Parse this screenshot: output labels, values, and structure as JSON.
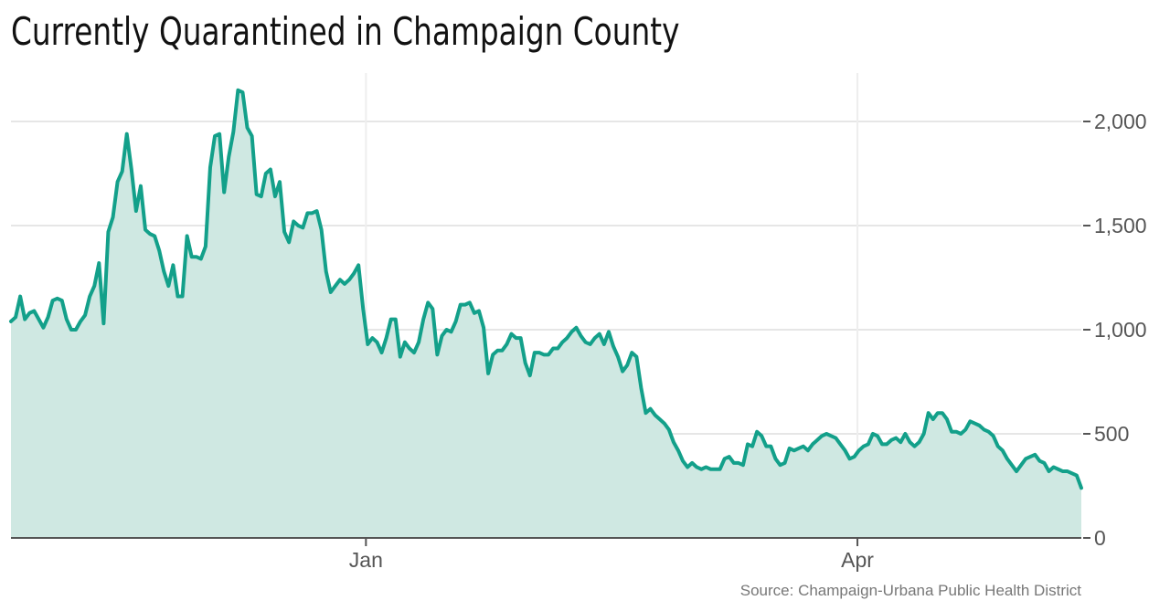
{
  "chart_data": {
    "type": "area",
    "title": "Currently Quarantined in Champaign County",
    "source": "Source: Champaign-Urbana Public Health District",
    "xlabel": "",
    "ylabel": "",
    "x_tick_labels": [
      "Jan",
      "Apr"
    ],
    "y_ticks": [
      {
        "value": 0,
        "label": "0"
      },
      {
        "value": 500,
        "label": "500"
      },
      {
        "value": 1000,
        "label": "1,000"
      },
      {
        "value": 1500,
        "label": "1,500"
      },
      {
        "value": 2000,
        "label": "2,000"
      }
    ],
    "ylim": [
      0,
      2000
    ],
    "grid": true,
    "legend": "none",
    "colors": {
      "line": "#13a08a",
      "fill": "#cfe8e2",
      "grid": "#e6e6e6",
      "axis": "#555555"
    },
    "x_start_date": "2020-10-28",
    "x_end_date": "2021-05-12",
    "values": [
      1040,
      1060,
      1160,
      1050,
      1080,
      1090,
      1050,
      1010,
      1060,
      1140,
      1150,
      1140,
      1050,
      1000,
      1000,
      1040,
      1070,
      1160,
      1210,
      1320,
      1030,
      1470,
      1540,
      1710,
      1760,
      1940,
      1770,
      1570,
      1690,
      1480,
      1460,
      1450,
      1380,
      1280,
      1210,
      1310,
      1160,
      1160,
      1450,
      1350,
      1350,
      1340,
      1400,
      1780,
      1930,
      1940,
      1660,
      1830,
      1950,
      2150,
      2140,
      1970,
      1930,
      1650,
      1640,
      1750,
      1770,
      1640,
      1710,
      1470,
      1420,
      1520,
      1500,
      1490,
      1560,
      1560,
      1570,
      1480,
      1280,
      1180,
      1210,
      1240,
      1220,
      1240,
      1270,
      1310,
      1100,
      930,
      960,
      940,
      890,
      960,
      1050,
      1050,
      870,
      940,
      910,
      890,
      940,
      1050,
      1130,
      1100,
      880,
      970,
      1000,
      990,
      1040,
      1120,
      1120,
      1130,
      1080,
      1090,
      1010,
      790,
      880,
      900,
      900,
      930,
      980,
      960,
      960,
      840,
      780,
      890,
      890,
      880,
      880,
      910,
      910,
      940,
      960,
      990,
      1010,
      970,
      940,
      930,
      960,
      980,
      930,
      990,
      920,
      870,
      800,
      830,
      890,
      870,
      720,
      600,
      620,
      590,
      570,
      550,
      520,
      460,
      420,
      370,
      340,
      360,
      340,
      330,
      340,
      330,
      330,
      330,
      380,
      390,
      360,
      360,
      350,
      450,
      440,
      510,
      490,
      440,
      440,
      380,
      350,
      360,
      430,
      420,
      430,
      440,
      420,
      450,
      470,
      490,
      500,
      490,
      480,
      450,
      420,
      380,
      390,
      420,
      440,
      450,
      500,
      490,
      450,
      450,
      470,
      480,
      460,
      500,
      460,
      440,
      460,
      500,
      600,
      570,
      600,
      600,
      570,
      510,
      510,
      500,
      520,
      560,
      550,
      540,
      520,
      510,
      490,
      440,
      420,
      380,
      350,
      320,
      350,
      380,
      390,
      400,
      370,
      360,
      320,
      340,
      330,
      320,
      320,
      310,
      300,
      240
    ]
  }
}
